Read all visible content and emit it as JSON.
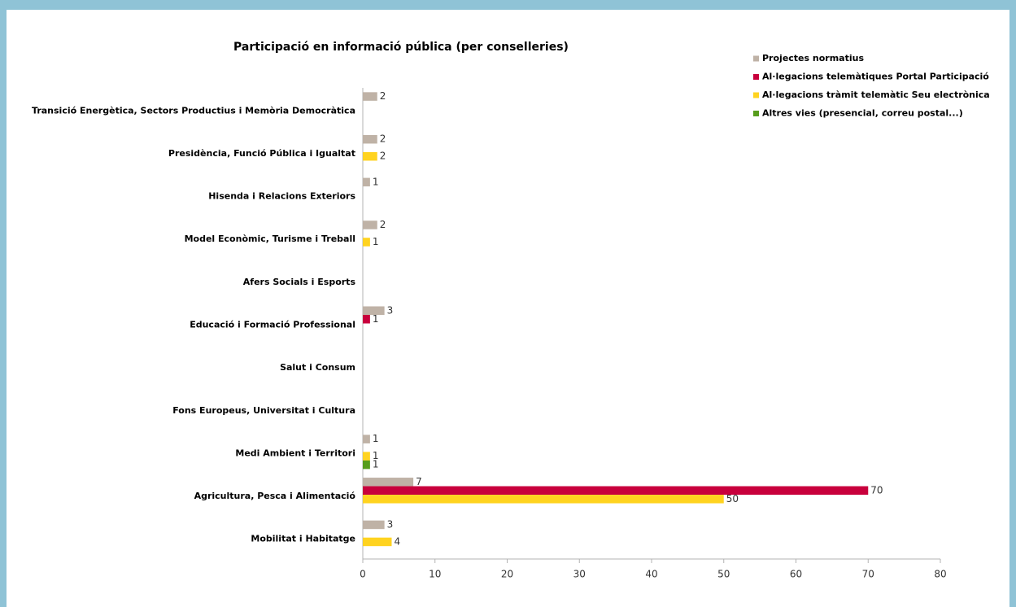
{
  "chart_data": {
    "type": "hbar",
    "title": "Participació en informació pública (per conselleries)",
    "categories": [
      "Transició Energètica, Sectors Productius i Memòria Democràtica",
      "Presidència, Funció Pública i Igualtat",
      "Hisenda i Relacions Exteriors",
      "Model Econòmic, Turisme i Treball",
      "Afers Socials i Esports",
      "Educació i Formació Professional",
      "Salut i Consum",
      "Fons Europeus, Universitat i Cultura",
      "Medi Ambient i Territori",
      "Agricultura, Pesca i Alimentació",
      "Mobilitat i Habitatge"
    ],
    "series": [
      {
        "name": "Projectes normatius",
        "color": "#bfb2a6",
        "values": [
          2,
          2,
          1,
          2,
          null,
          3,
          null,
          null,
          1,
          7,
          3
        ]
      },
      {
        "name": "Al·legacions telemàtiques Portal Participació",
        "color": "#c8003c",
        "values": [
          null,
          null,
          null,
          null,
          null,
          1,
          null,
          null,
          null,
          70,
          null
        ]
      },
      {
        "name": "Al·legacions tràmit telemàtic Seu electrònica",
        "color": "#ffd320",
        "values": [
          null,
          2,
          null,
          1,
          null,
          null,
          null,
          null,
          1,
          50,
          4
        ]
      },
      {
        "name": "Altres vies (presencial, correu postal...)",
        "color": "#579d1c",
        "values": [
          null,
          null,
          null,
          null,
          null,
          null,
          null,
          null,
          1,
          null,
          null
        ]
      }
    ],
    "xlim": [
      0,
      80
    ],
    "xticks": [
      0,
      10,
      20,
      30,
      40,
      50,
      60,
      70,
      80
    ],
    "legend": "top-right"
  }
}
